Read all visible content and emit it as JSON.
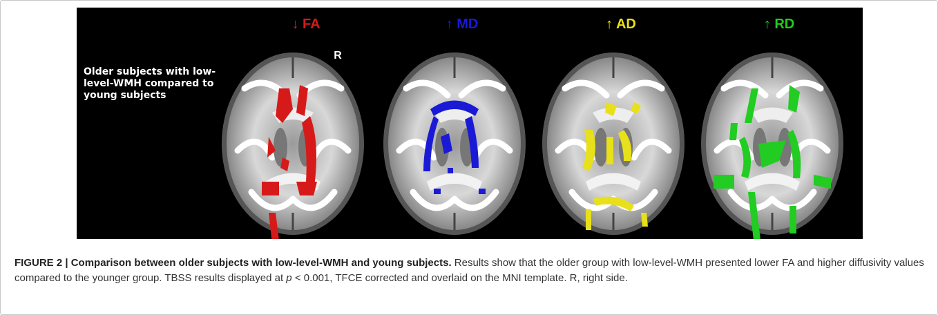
{
  "figure": {
    "panel_labels": [
      "↓ FA",
      "↑ MD",
      "↑ AD",
      "↑ RD"
    ],
    "side_label": "R",
    "group_label": "Older subjects with low-level-WMH compared to young subjects"
  },
  "caption": {
    "title": "FIGURE 2 | Comparison between older subjects with low-level-WMH and young subjects.",
    "text_before": "Results show that the older group with low-level-WMH presented lower FA and higher diffusivity values compared to the younger group. TBSS results displayed at",
    "p_symbol": "p",
    "text_after": "< 0.001, TFCE corrected and overlaid on the MNI template. R, right side."
  }
}
